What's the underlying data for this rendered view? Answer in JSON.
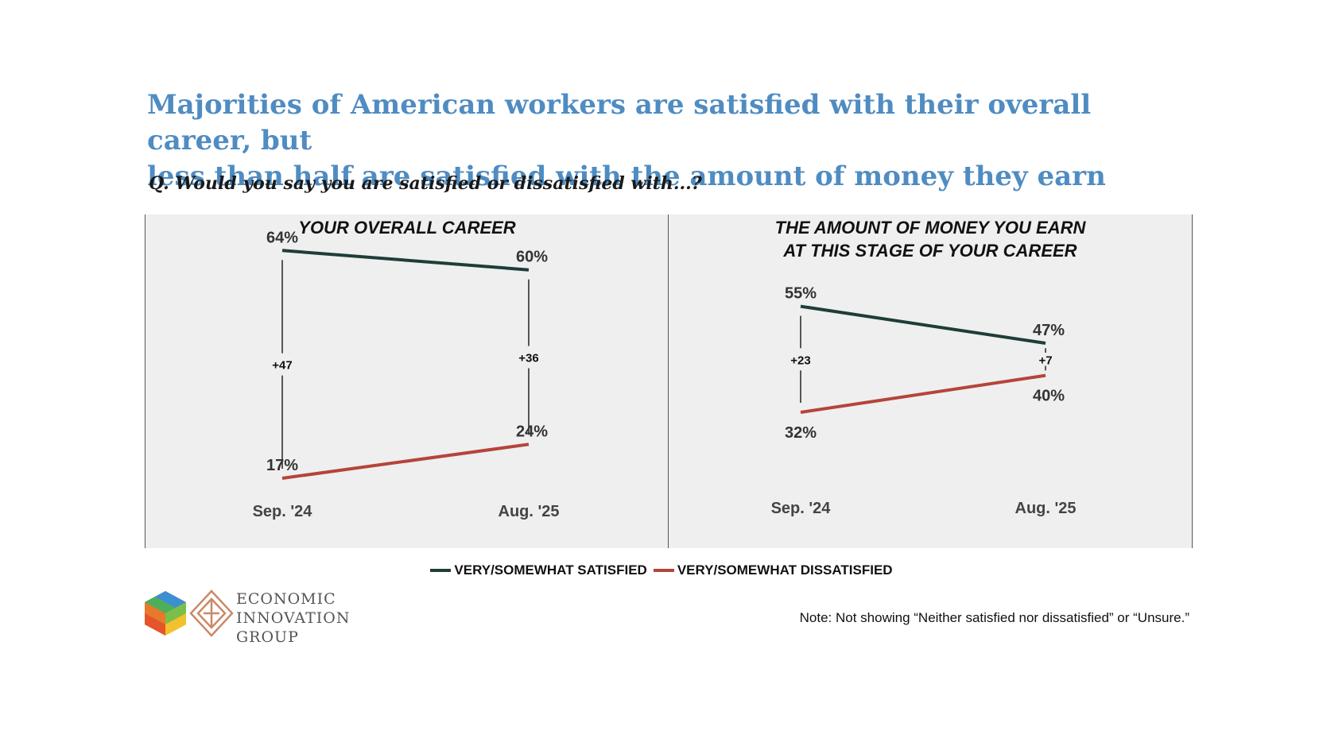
{
  "headline": {
    "line1": "Majorities of American workers are satisfied with their overall career, but",
    "line2": "less than half are satisfied with the amount of money they earn"
  },
  "question": "Q. Would you say you are satisfied or dissatisfied with...?",
  "colors": {
    "satisfied": "#1f3d38",
    "dissatisfied": "#b5443a",
    "panel_bg": "#efefef",
    "headline": "#4f8cc2"
  },
  "chart_data": [
    {
      "type": "line",
      "title_lines": [
        "YOUR OVERALL CAREER"
      ],
      "categories": [
        "Sep. '24",
        "Aug. '25"
      ],
      "series": [
        {
          "name": "VERY/SOMEWHAT SATISFIED",
          "values": [
            64,
            60
          ],
          "labels": [
            "64%",
            "60%"
          ]
        },
        {
          "name": "VERY/SOMEWHAT DISSATISFIED",
          "values": [
            17,
            24
          ],
          "labels": [
            "17%",
            "24%"
          ]
        }
      ],
      "gaps": [
        "+47",
        "+36"
      ]
    },
    {
      "type": "line",
      "title_lines": [
        "THE AMOUNT OF MONEY YOU EARN",
        "AT THIS STAGE OF YOUR CAREER"
      ],
      "categories": [
        "Sep. '24",
        "Aug. '25"
      ],
      "series": [
        {
          "name": "VERY/SOMEWHAT SATISFIED",
          "values": [
            55,
            47
          ],
          "labels": [
            "55%",
            "47%"
          ]
        },
        {
          "name": "VERY/SOMEWHAT DISSATISFIED",
          "values": [
            32,
            40
          ],
          "labels": [
            "32%",
            "40%"
          ]
        }
      ],
      "gaps": [
        "+23",
        "+7"
      ]
    }
  ],
  "legend": {
    "satisfied": "VERY/SOMEWHAT SATISFIED",
    "dissatisfied": "VERY/SOMEWHAT DISSATISFIED"
  },
  "logo": {
    "line1": "ECONOMIC",
    "line2": "INNOVATION",
    "line3": "GROUP"
  },
  "note": "Note: Not showing “Neither satisfied nor dissatisfied” or “Unsure.”"
}
